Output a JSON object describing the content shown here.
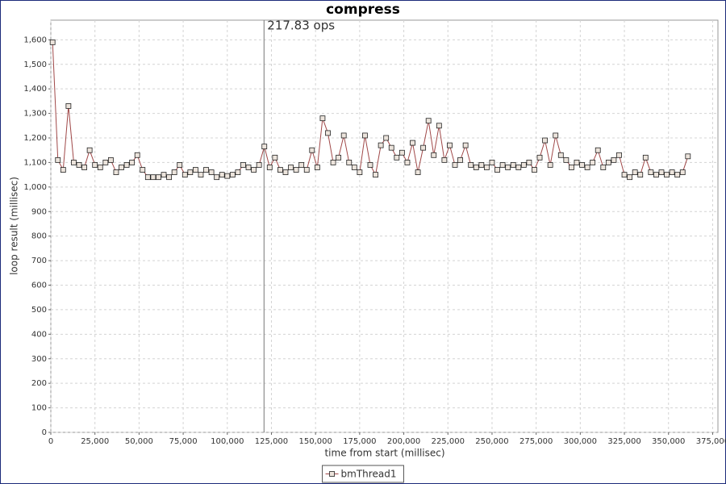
{
  "chart_data": {
    "type": "line",
    "title": "compress",
    "x_label": "time from start (millisec)",
    "y_label": "loop result (millisec)",
    "annotation": "217.83 ops",
    "crosshair_x": 120800,
    "xlim": [
      0,
      378000
    ],
    "ylim": [
      0,
      1680
    ],
    "xticks": [
      0,
      {
        "value": 25000,
        "label": "25,000"
      },
      {
        "value": 50000,
        "label": "50,000"
      },
      {
        "value": 75000,
        "label": "75,000"
      },
      {
        "value": 100000,
        "label": "100,000"
      },
      {
        "value": 125000,
        "label": "125,000"
      },
      {
        "value": 150000,
        "label": "150,000"
      },
      {
        "value": 175000,
        "label": "175,000"
      },
      {
        "value": 200000,
        "label": "200,000"
      },
      {
        "value": 225000,
        "label": "225,000"
      },
      {
        "value": 250000,
        "label": "250,000"
      },
      {
        "value": 275000,
        "label": "275,000"
      },
      {
        "value": 300000,
        "label": "300,000"
      },
      {
        "value": 325000,
        "label": "325,000"
      },
      {
        "value": 350000,
        "label": "350,000"
      },
      {
        "value": 375000,
        "label": "375,000"
      }
    ],
    "yticks": [
      0,
      100,
      200,
      300,
      400,
      500,
      600,
      700,
      800,
      900,
      {
        "value": 1000,
        "label": "1,000"
      },
      {
        "value": 1100,
        "label": "1,100"
      },
      {
        "value": 1200,
        "label": "1,200"
      },
      {
        "value": 1300,
        "label": "1,300"
      },
      {
        "value": 1400,
        "label": "1,400"
      },
      {
        "value": 1500,
        "label": "1,500"
      },
      {
        "value": 1600,
        "label": "1,600"
      }
    ],
    "grid": true,
    "legend": "bottom",
    "x": [
      1000,
      4000,
      7000,
      10000,
      13000,
      16000,
      19000,
      22000,
      25000,
      28000,
      31000,
      34000,
      37000,
      40000,
      43000,
      46000,
      49000,
      52000,
      55000,
      58000,
      61000,
      64000,
      67000,
      70000,
      73000,
      76000,
      79000,
      82000,
      85000,
      88000,
      91000,
      94000,
      97000,
      100000,
      103000,
      106000,
      109000,
      112000,
      115000,
      118000,
      121000,
      124000,
      127000,
      130000,
      133000,
      136000,
      139000,
      142000,
      145000,
      148000,
      151000,
      154000,
      157000,
      160000,
      163000,
      166000,
      169000,
      172000,
      175000,
      178000,
      181000,
      184000,
      187000,
      190000,
      193000,
      196000,
      199000,
      202000,
      205000,
      208000,
      211000,
      214000,
      217000,
      220000,
      223000,
      226000,
      229000,
      232000,
      235000,
      238000,
      241000,
      244000,
      247000,
      250000,
      253000,
      256000,
      259000,
      262000,
      265000,
      268000,
      271000,
      274000,
      277000,
      280000,
      283000,
      286000,
      289000,
      292000,
      295000,
      298000,
      301000,
      304000,
      307000,
      310000,
      313000,
      316000,
      319000,
      322000,
      325000,
      328000,
      331000,
      334000,
      337000,
      340000,
      343000,
      346000,
      349000,
      352000,
      355000,
      358000,
      361000
    ],
    "series": [
      {
        "name": "bmThread1",
        "color": "#a04848",
        "marker_color": "#ece4dc",
        "values": [
          1590,
          1110,
          1070,
          1330,
          1100,
          1090,
          1080,
          1150,
          1090,
          1080,
          1100,
          1110,
          1060,
          1080,
          1090,
          1100,
          1130,
          1070,
          1040,
          1040,
          1040,
          1050,
          1040,
          1060,
          1090,
          1050,
          1060,
          1070,
          1050,
          1070,
          1060,
          1040,
          1050,
          1045,
          1050,
          1060,
          1090,
          1080,
          1070,
          1090,
          1165,
          1080,
          1120,
          1070,
          1060,
          1080,
          1070,
          1090,
          1070,
          1150,
          1080,
          1280,
          1220,
          1100,
          1120,
          1210,
          1100,
          1080,
          1060,
          1210,
          1090,
          1050,
          1170,
          1200,
          1160,
          1120,
          1140,
          1100,
          1180,
          1060,
          1160,
          1270,
          1130,
          1250,
          1110,
          1170,
          1090,
          1110,
          1170,
          1090,
          1080,
          1090,
          1080,
          1100,
          1070,
          1090,
          1080,
          1090,
          1080,
          1090,
          1100,
          1070,
          1120,
          1190,
          1090,
          1210,
          1130,
          1110,
          1080,
          1100,
          1090,
          1080,
          1100,
          1150,
          1080,
          1100,
          1110,
          1130,
          1050,
          1040,
          1060,
          1050,
          1120,
          1060,
          1050,
          1060,
          1050,
          1060,
          1050,
          1060,
          1125
        ]
      }
    ]
  }
}
